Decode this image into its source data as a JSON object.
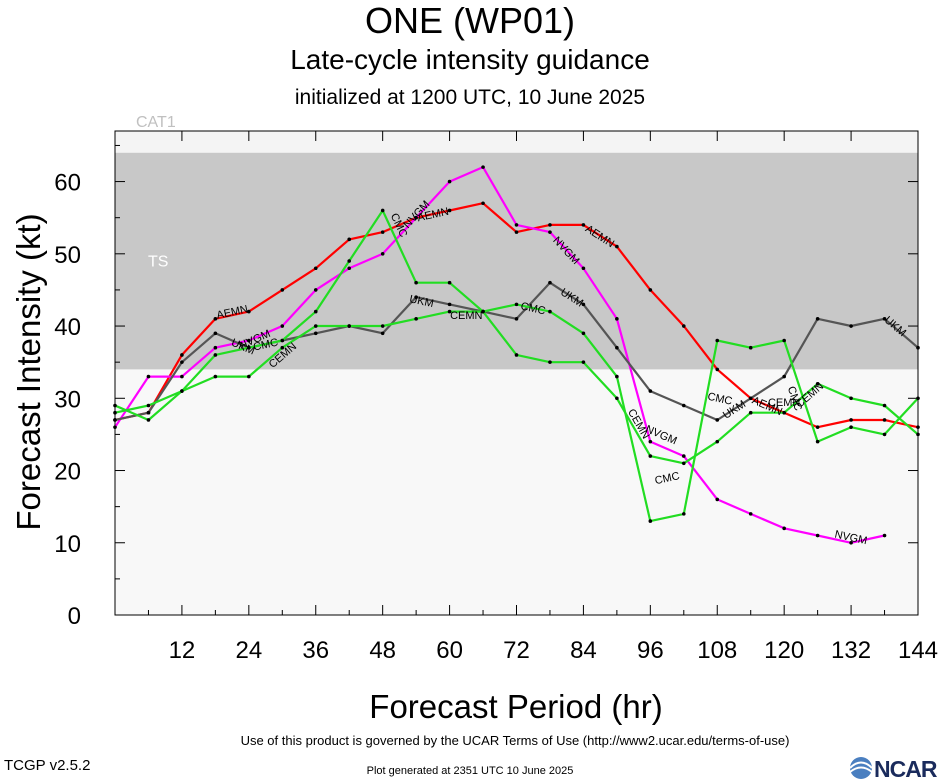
{
  "header": {
    "title": "ONE (WP01)",
    "subtitle": "Late-cycle intensity guidance",
    "initialized": "initialized at 1200 UTC, 10 June 2025"
  },
  "footer": {
    "terms": "Use of this product is governed by the UCAR Terms of Use (http://www2.ucar.edu/terms-of-use)",
    "version": "TCGP v2.5.2",
    "generated": "Plot generated at 2351 UTC   10 June 2025",
    "logo": "NCAR"
  },
  "chart_data": {
    "type": "line",
    "xlabel": "Forecast Period (hr)",
    "ylabel": "Forecast Intensity (kt)",
    "xlim": [
      0,
      144
    ],
    "ylim": [
      0,
      67
    ],
    "xticks": [
      12,
      24,
      36,
      48,
      60,
      72,
      84,
      96,
      108,
      120,
      132,
      144
    ],
    "yticks": [
      0,
      10,
      20,
      30,
      40,
      50,
      60
    ],
    "bands": [
      {
        "label": "TS",
        "from": 34,
        "to": 64,
        "color": "#c8c8c8"
      },
      {
        "label": "CAT1",
        "from": 64,
        "to": 67,
        "color": "#f4f4f4"
      }
    ],
    "series": [
      {
        "name": "AEMN",
        "color": "#ff0000",
        "x": [
          0,
          6,
          12,
          18,
          24,
          30,
          36,
          42,
          48,
          54,
          60,
          66,
          72,
          78,
          84,
          90,
          96,
          102,
          108,
          114,
          120,
          126,
          132,
          138,
          144
        ],
        "y": [
          27,
          28,
          36,
          41,
          42,
          45,
          48,
          52,
          53,
          55,
          56,
          57,
          53,
          54,
          54,
          51,
          45,
          40,
          34,
          30,
          28,
          26,
          27,
          27,
          26
        ],
        "labels": [
          {
            "x": 21,
            "y": 42
          },
          {
            "x": 57,
            "y": 55.5
          },
          {
            "x": 87,
            "y": 52.5
          },
          {
            "x": 117,
            "y": 29
          }
        ]
      },
      {
        "name": "NVGM",
        "color": "#ff00ff",
        "x": [
          0,
          6,
          12,
          18,
          24,
          30,
          36,
          42,
          48,
          54,
          60,
          66,
          72,
          78,
          84,
          90,
          96,
          102,
          108,
          114,
          120,
          126,
          132,
          138
        ],
        "y": [
          26,
          33,
          33,
          37,
          38,
          40,
          45,
          48,
          50,
          55,
          60,
          62,
          54,
          53,
          48,
          41,
          24,
          22,
          16,
          14,
          12,
          11,
          10,
          11
        ],
        "labels": [
          {
            "x": 25,
            "y": 38.2
          },
          {
            "x": 54,
            "y": 55.5
          },
          {
            "x": 81,
            "y": 50.5
          },
          {
            "x": 98,
            "y": 25
          },
          {
            "x": 132,
            "y": 10.8
          }
        ]
      },
      {
        "name": "UKM",
        "color": "#555555",
        "x": [
          0,
          6,
          12,
          18,
          24,
          30,
          36,
          42,
          48,
          54,
          60,
          66,
          72,
          78,
          84,
          90,
          96,
          102,
          108,
          114,
          120,
          126,
          132,
          138,
          144
        ],
        "y": [
          27,
          28,
          35,
          39,
          37,
          38,
          39,
          40,
          39,
          44,
          43,
          42,
          41,
          46,
          43,
          37,
          31,
          29,
          27,
          30,
          33,
          41,
          40,
          41,
          37
        ],
        "labels": [
          {
            "x": 23,
            "y": 37.2
          },
          {
            "x": 55,
            "y": 43.5
          },
          {
            "x": 82,
            "y": 44
          },
          {
            "x": 111,
            "y": 28.5
          },
          {
            "x": 140,
            "y": 40
          }
        ]
      },
      {
        "name": "CMC",
        "color": "#22dd22",
        "x": [
          0,
          6,
          12,
          18,
          24,
          30,
          36,
          42,
          48,
          54,
          60,
          66,
          72,
          78,
          84,
          90,
          96,
          102,
          108,
          114,
          120,
          126,
          132,
          138,
          144
        ],
        "y": [
          29,
          27,
          31,
          36,
          37,
          38,
          42,
          49,
          56,
          46,
          46,
          42,
          43,
          42,
          39,
          33,
          13,
          14,
          38,
          37,
          38,
          24,
          26,
          25,
          30
        ],
        "labels": [
          {
            "x": 27,
            "y": 37.5
          },
          {
            "x": 51,
            "y": 54
          },
          {
            "x": 75,
            "y": 42.5
          },
          {
            "x": 99,
            "y": 19
          },
          {
            "x": 108.5,
            "y": 30
          },
          {
            "x": 122,
            "y": 30
          }
        ]
      },
      {
        "name": "CEMN",
        "color": "#22dd22",
        "x": [
          0,
          6,
          12,
          18,
          24,
          30,
          36,
          42,
          48,
          54,
          60,
          66,
          72,
          78,
          84,
          90,
          96,
          102,
          108,
          114,
          120,
          126,
          132,
          138,
          144
        ],
        "y": [
          28,
          29,
          31,
          33,
          33,
          37,
          40,
          40,
          40,
          41,
          42,
          42,
          36,
          35,
          35,
          30,
          22,
          21,
          24,
          28,
          28,
          32,
          30,
          29,
          25
        ],
        "labels": [
          {
            "x": 30,
            "y": 36
          },
          {
            "x": 63,
            "y": 41.5
          },
          {
            "x": 94,
            "y": 26.5
          },
          {
            "x": 120,
            "y": 29.5
          },
          {
            "x": 124.5,
            "y": 30.5
          }
        ]
      }
    ]
  }
}
